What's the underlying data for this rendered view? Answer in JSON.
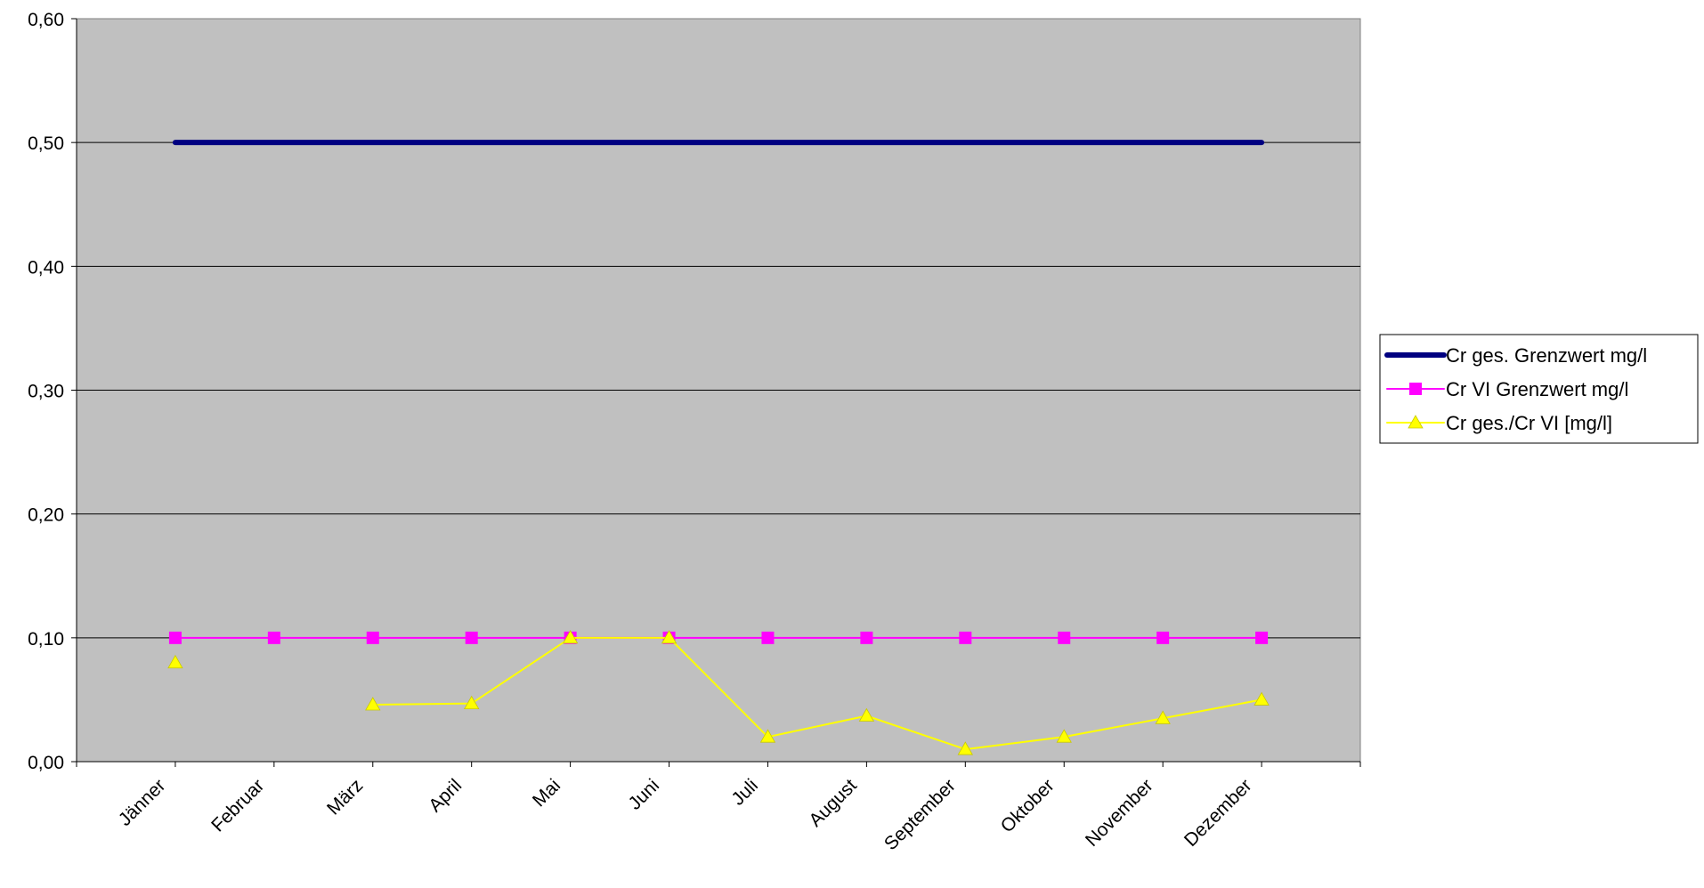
{
  "chart_data": {
    "type": "line",
    "title": "",
    "xlabel": "",
    "ylabel": "",
    "categories": [
      "Jänner",
      "Februar",
      "März",
      "April",
      "Mai",
      "Juni",
      "Juli",
      "August",
      "September",
      "Oktober",
      "November",
      "Dezember"
    ],
    "ylim": [
      0,
      0.6
    ],
    "y_ticks": [
      "0,00",
      "0,10",
      "0,20",
      "0,30",
      "0,40",
      "0,50",
      "0,60"
    ],
    "grid": true,
    "legend_position": "right",
    "plot_background": "#C0C0C0",
    "series": [
      {
        "name": "Cr ges. Grenzwert mg/l",
        "color": "#000080",
        "marker": "none",
        "values": [
          0.5,
          0.5,
          0.5,
          0.5,
          0.5,
          0.5,
          0.5,
          0.5,
          0.5,
          0.5,
          0.5,
          0.5
        ]
      },
      {
        "name": "Cr VI Grenzwert mg/l",
        "color": "#FF00FF",
        "marker": "square",
        "values": [
          0.1,
          0.1,
          0.1,
          0.1,
          0.1,
          0.1,
          0.1,
          0.1,
          0.1,
          0.1,
          0.1,
          0.1
        ]
      },
      {
        "name": "Cr ges./Cr VI [mg/l]",
        "color": "#FFFF00",
        "marker": "triangle",
        "values": [
          0.08,
          null,
          0.046,
          0.047,
          0.1,
          0.1,
          0.02,
          0.037,
          0.01,
          0.02,
          0.035,
          0.05
        ]
      }
    ]
  }
}
